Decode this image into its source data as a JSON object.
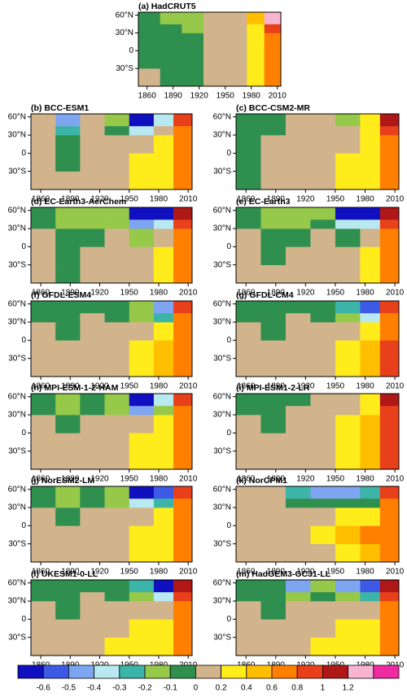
{
  "chart_data": [
    {
      "type": "heatmap",
      "title": "(a) HadCRUT5",
      "x_edges": [
        1850,
        1875,
        1900,
        1925,
        1950,
        1975,
        1995,
        2014
      ],
      "y_edges": [
        -60,
        -30,
        0,
        30,
        45,
        65
      ],
      "xlim": [
        1850,
        2014
      ],
      "ylim": [
        -60,
        65
      ],
      "xticks": [
        1860,
        1890,
        1920,
        1950,
        1980,
        2010
      ],
      "yticks": [
        {
          "value": -30,
          "label": "30°S"
        },
        0,
        {
          "value": 30,
          "label": "30°N"
        },
        {
          "value": 60,
          "label": "60°N"
        }
      ],
      "values": [
        [
          0,
          -0.05,
          -0.05,
          0.1,
          0.1,
          0.3,
          0.7
        ],
        [
          -0.05,
          -0.05,
          -0.05,
          0.1,
          0.1,
          0.3,
          0.7
        ],
        [
          -0.05,
          -0.05,
          -0.05,
          0.1,
          0.1,
          0.3,
          0.7
        ],
        [
          -0.05,
          -0.05,
          -0.15,
          0.1,
          0.1,
          0.3,
          0.9
        ],
        [
          -0.05,
          -0.15,
          -0.15,
          0.1,
          0.1,
          0.5,
          1.3
        ]
      ]
    },
    {
      "type": "heatmap",
      "title": "(b) BCC-ESM1",
      "x_edges": [
        1850,
        1875,
        1900,
        1925,
        1950,
        1975,
        1995,
        2014
      ],
      "y_edges": [
        -60,
        -30,
        0,
        30,
        45,
        65
      ],
      "xlim": [
        1850,
        2014
      ],
      "ylim": [
        -60,
        65
      ],
      "xticks": [
        1860,
        1890,
        1920,
        1950,
        1980,
        2010
      ],
      "yticks": [
        {
          "value": -30,
          "label": "30°S"
        },
        0,
        {
          "value": 30,
          "label": "30°N"
        },
        {
          "value": 60,
          "label": "60°N"
        }
      ],
      "values": [
        [
          0.1,
          0.1,
          0.1,
          0.1,
          0.3,
          0.3,
          0.6
        ],
        [
          0.1,
          -0.05,
          0.1,
          0.1,
          0.3,
          0.3,
          0.6
        ],
        [
          0.1,
          -0.05,
          0.1,
          0.1,
          0.1,
          0.3,
          0.6
        ],
        [
          0.1,
          -0.25,
          0.1,
          -0.05,
          -0.35,
          0.1,
          0.6
        ],
        [
          0.1,
          -0.45,
          0.1,
          -0.15,
          -0.7,
          -0.35,
          0.9
        ]
      ]
    },
    {
      "type": "heatmap",
      "title": "(c) BCC-CSM2-MR",
      "x_edges": [
        1850,
        1875,
        1900,
        1925,
        1950,
        1975,
        1995,
        2014
      ],
      "y_edges": [
        -60,
        -30,
        0,
        30,
        45,
        65
      ],
      "xlim": [
        1850,
        2014
      ],
      "ylim": [
        -60,
        65
      ],
      "xticks": [
        1860,
        1890,
        1920,
        1950,
        1980,
        2010
      ],
      "yticks": [
        {
          "value": -30,
          "label": "30°S"
        },
        0,
        {
          "value": 30,
          "label": "30°N"
        },
        {
          "value": 60,
          "label": "60°N"
        }
      ],
      "values": [
        [
          -0.05,
          0.1,
          0.1,
          0.1,
          0.3,
          0.3,
          0.7
        ],
        [
          -0.05,
          0.1,
          0.1,
          0.1,
          0.3,
          0.3,
          0.7
        ],
        [
          -0.05,
          0.1,
          0.1,
          0.1,
          0.1,
          0.3,
          0.7
        ],
        [
          -0.05,
          -0.05,
          0.1,
          0.1,
          0.1,
          0.3,
          0.9
        ],
        [
          -0.05,
          -0.05,
          0.1,
          0.1,
          -0.15,
          0.3,
          1.1
        ]
      ]
    },
    {
      "type": "heatmap",
      "title": "(d) EC-Earth3-AerChem",
      "x_edges": [
        1850,
        1875,
        1900,
        1925,
        1950,
        1975,
        1995,
        2014
      ],
      "y_edges": [
        -60,
        -30,
        0,
        30,
        45,
        65
      ],
      "xlim": [
        1850,
        2014
      ],
      "ylim": [
        -60,
        65
      ],
      "xticks": [
        1860,
        1890,
        1920,
        1950,
        1980,
        2010
      ],
      "yticks": [
        {
          "value": -30,
          "label": "30°S"
        },
        0,
        {
          "value": 30,
          "label": "30°N"
        },
        {
          "value": 60,
          "label": "60°N"
        }
      ],
      "values": [
        [
          0.1,
          -0.05,
          0.1,
          0.1,
          0.1,
          0.3,
          0.7
        ],
        [
          0.1,
          -0.05,
          0.1,
          0.1,
          0.1,
          0.3,
          0.7
        ],
        [
          0.1,
          -0.05,
          -0.05,
          0.1,
          -0.15,
          0.1,
          0.7
        ],
        [
          -0.05,
          -0.15,
          -0.15,
          -0.15,
          -0.45,
          -0.35,
          0.9
        ],
        [
          -0.05,
          -0.15,
          -0.15,
          -0.15,
          -0.7,
          -0.65,
          1.1
        ]
      ]
    },
    {
      "type": "heatmap",
      "title": "(e) EC-Earth3",
      "x_edges": [
        1850,
        1875,
        1900,
        1925,
        1950,
        1975,
        1995,
        2014
      ],
      "y_edges": [
        -60,
        -30,
        0,
        30,
        45,
        65
      ],
      "xlim": [
        1850,
        2014
      ],
      "ylim": [
        -60,
        65
      ],
      "xticks": [
        1860,
        1890,
        1920,
        1950,
        1980,
        2010
      ],
      "yticks": [
        {
          "value": -30,
          "label": "30°S"
        },
        0,
        {
          "value": 30,
          "label": "30°N"
        },
        {
          "value": 60,
          "label": "60°N"
        }
      ],
      "values": [
        [
          0.1,
          0.1,
          0.1,
          0.1,
          0.1,
          0.3,
          0.7
        ],
        [
          0.1,
          -0.05,
          0.1,
          0.1,
          0.1,
          0.3,
          0.7
        ],
        [
          0.1,
          -0.05,
          -0.05,
          0.1,
          -0.05,
          0.1,
          0.7
        ],
        [
          -0.05,
          -0.15,
          -0.15,
          -0.05,
          -0.35,
          -0.35,
          0.9
        ],
        [
          -0.05,
          -0.15,
          -0.15,
          -0.15,
          -0.7,
          -0.65,
          1.1
        ]
      ]
    },
    {
      "type": "heatmap",
      "title": "(f) GFDL-ESM4",
      "x_edges": [
        1850,
        1875,
        1900,
        1925,
        1950,
        1975,
        1995,
        2014
      ],
      "y_edges": [
        -60,
        -30,
        0,
        30,
        45,
        65
      ],
      "xlim": [
        1850,
        2014
      ],
      "ylim": [
        -60,
        65
      ],
      "xticks": [
        1860,
        1890,
        1920,
        1950,
        1980,
        2010
      ],
      "yticks": [
        {
          "value": -30,
          "label": "30°S"
        },
        0,
        {
          "value": 30,
          "label": "30°N"
        },
        {
          "value": 60,
          "label": "60°N"
        }
      ],
      "values": [
        [
          0.1,
          0.1,
          0.1,
          0.1,
          0.3,
          0.5,
          0.7
        ],
        [
          0.1,
          0.1,
          0.1,
          0.1,
          0.3,
          0.5,
          0.7
        ],
        [
          0.1,
          -0.05,
          0.1,
          0.1,
          0.1,
          0.3,
          0.7
        ],
        [
          -0.05,
          -0.05,
          0.1,
          -0.05,
          -0.15,
          -0.25,
          0.7
        ],
        [
          -0.05,
          -0.05,
          -0.05,
          -0.05,
          -0.15,
          -0.45,
          0.9
        ]
      ]
    },
    {
      "type": "heatmap",
      "title": "(g) GFDL-CM4",
      "x_edges": [
        1850,
        1875,
        1900,
        1925,
        1950,
        1975,
        1995,
        2014
      ],
      "y_edges": [
        -60,
        -30,
        0,
        30,
        45,
        65
      ],
      "xlim": [
        1850,
        2014
      ],
      "ylim": [
        -60,
        65
      ],
      "xticks": [
        1860,
        1890,
        1920,
        1950,
        1980,
        2010
      ],
      "yticks": [
        {
          "value": -30,
          "label": "30°S"
        },
        0,
        {
          "value": 30,
          "label": "30°N"
        },
        {
          "value": 60,
          "label": "60°N"
        }
      ],
      "values": [
        [
          0.1,
          0.1,
          0.1,
          0.1,
          0.3,
          0.5,
          0.9
        ],
        [
          0.1,
          0.1,
          0.1,
          0.1,
          0.3,
          0.5,
          0.9
        ],
        [
          0.1,
          -0.05,
          0.1,
          0.1,
          0.1,
          0.3,
          0.7
        ],
        [
          -0.05,
          -0.05,
          0.1,
          -0.05,
          -0.15,
          -0.35,
          0.7
        ],
        [
          -0.05,
          -0.05,
          -0.05,
          -0.05,
          -0.25,
          -0.55,
          0.9
        ]
      ]
    },
    {
      "type": "heatmap",
      "title": "(h) MPI-ESM-1-2-HAM",
      "x_edges": [
        1850,
        1875,
        1900,
        1925,
        1950,
        1975,
        1995,
        2014
      ],
      "y_edges": [
        -60,
        -30,
        0,
        30,
        45,
        65
      ],
      "xlim": [
        1850,
        2014
      ],
      "ylim": [
        -60,
        65
      ],
      "xticks": [
        1860,
        1890,
        1920,
        1950,
        1980,
        2010
      ],
      "yticks": [
        {
          "value": -30,
          "label": "30°S"
        },
        0,
        {
          "value": 30,
          "label": "30°N"
        },
        {
          "value": 60,
          "label": "60°N"
        }
      ],
      "values": [
        [
          0.1,
          0.1,
          0.1,
          0.1,
          0.3,
          0.3,
          0.7
        ],
        [
          0.1,
          0.1,
          0.1,
          0.1,
          0.3,
          0.3,
          0.7
        ],
        [
          0.1,
          -0.05,
          0.1,
          0.1,
          0.1,
          0.3,
          0.7
        ],
        [
          -0.05,
          -0.15,
          -0.05,
          -0.15,
          -0.45,
          -0.15,
          0.7
        ],
        [
          -0.05,
          -0.15,
          -0.05,
          -0.15,
          -0.7,
          -0.35,
          0.9
        ]
      ]
    },
    {
      "type": "heatmap",
      "title": "(i) MPI-ESM1-2-LR",
      "x_edges": [
        1850,
        1875,
        1900,
        1925,
        1950,
        1975,
        1995,
        2014
      ],
      "y_edges": [
        -60,
        -30,
        0,
        30,
        45,
        65
      ],
      "xlim": [
        1850,
        2014
      ],
      "ylim": [
        -60,
        65
      ],
      "xticks": [
        1860,
        1890,
        1920,
        1950,
        1980,
        2010
      ],
      "yticks": [
        {
          "value": -30,
          "label": "30°S"
        },
        0,
        {
          "value": 30,
          "label": "30°N"
        },
        {
          "value": 60,
          "label": "60°N"
        }
      ],
      "values": [
        [
          0.1,
          0.1,
          0.1,
          0.1,
          0.3,
          0.5,
          0.9
        ],
        [
          0.1,
          0.1,
          0.1,
          0.1,
          0.3,
          0.5,
          0.9
        ],
        [
          0.1,
          -0.05,
          0.1,
          0.1,
          0.3,
          0.5,
          0.9
        ],
        [
          -0.05,
          -0.05,
          0.1,
          0.1,
          0.1,
          0.3,
          0.9
        ],
        [
          -0.05,
          -0.05,
          -0.05,
          0.1,
          0.1,
          0.3,
          1.1
        ]
      ]
    },
    {
      "type": "heatmap",
      "title": "(j) NorESM2-LM",
      "x_edges": [
        1850,
        1875,
        1900,
        1925,
        1950,
        1975,
        1995,
        2014
      ],
      "y_edges": [
        -60,
        -30,
        0,
        30,
        45,
        65
      ],
      "xlim": [
        1850,
        2014
      ],
      "ylim": [
        -60,
        65
      ],
      "xticks": [
        1860,
        1890,
        1920,
        1950,
        1980,
        2010
      ],
      "yticks": [
        {
          "value": -30,
          "label": "30°S"
        },
        0,
        {
          "value": 30,
          "label": "30°N"
        },
        {
          "value": 60,
          "label": "60°N"
        }
      ],
      "values": [
        [
          0.1,
          0.1,
          0.1,
          0.1,
          0.3,
          0.3,
          0.7
        ],
        [
          0.1,
          0.1,
          0.1,
          0.1,
          0.3,
          0.3,
          0.7
        ],
        [
          0.1,
          -0.05,
          0.1,
          0.1,
          0.1,
          0.3,
          0.7
        ],
        [
          -0.05,
          -0.15,
          -0.05,
          -0.15,
          -0.35,
          -0.25,
          0.7
        ],
        [
          -0.05,
          -0.15,
          -0.05,
          -0.15,
          -0.7,
          -0.55,
          0.9
        ]
      ]
    },
    {
      "type": "heatmap",
      "title": "(k) NorCPM1",
      "x_edges": [
        1850,
        1875,
        1900,
        1925,
        1950,
        1975,
        1995,
        2014
      ],
      "y_edges": [
        -60,
        -30,
        0,
        30,
        45,
        65
      ],
      "xlim": [
        1850,
        2014
      ],
      "ylim": [
        -60,
        65
      ],
      "xticks": [
        1860,
        1890,
        1920,
        1950,
        1980,
        2010
      ],
      "yticks": [
        {
          "value": -30,
          "label": "30°S"
        },
        0,
        {
          "value": 30,
          "label": "30°N"
        },
        {
          "value": 60,
          "label": "60°N"
        }
      ],
      "values": [
        [
          0.1,
          0.1,
          0.1,
          0.1,
          0.3,
          0.5,
          0.7
        ],
        [
          0.1,
          0.1,
          0.1,
          0.3,
          0.5,
          0.7,
          0.7
        ],
        [
          0.1,
          0.1,
          0.1,
          0.1,
          0.3,
          0.3,
          0.7
        ],
        [
          0.1,
          0.1,
          -0.05,
          -0.05,
          -0.05,
          -0.05,
          0.7
        ],
        [
          0.1,
          0.1,
          -0.25,
          -0.45,
          -0.45,
          -0.25,
          0.9
        ]
      ]
    },
    {
      "type": "heatmap",
      "title": "(l) UKESM1-0-LL",
      "x_edges": [
        1850,
        1875,
        1900,
        1925,
        1950,
        1975,
        1995,
        2014
      ],
      "y_edges": [
        -60,
        -30,
        0,
        30,
        45,
        65
      ],
      "xlim": [
        1850,
        2014
      ],
      "ylim": [
        -60,
        65
      ],
      "xticks": [
        1860,
        1890,
        1920,
        1950,
        1980,
        2010
      ],
      "yticks": [
        {
          "value": -30,
          "label": "30°S"
        },
        0,
        {
          "value": 30,
          "label": "30°N"
        },
        {
          "value": 60,
          "label": "60°N"
        }
      ],
      "values": [
        [
          0.1,
          0.1,
          0.1,
          0.3,
          0.3,
          0.3,
          0.7
        ],
        [
          0.1,
          0.1,
          0.1,
          0.1,
          0.3,
          0.3,
          0.7
        ],
        [
          0.1,
          -0.05,
          0.1,
          0.1,
          0.1,
          0.1,
          0.7
        ],
        [
          -0.05,
          -0.05,
          0.1,
          -0.05,
          -0.15,
          -0.35,
          0.9
        ],
        [
          -0.05,
          -0.05,
          -0.05,
          -0.05,
          -0.25,
          -0.7,
          1.1
        ]
      ]
    },
    {
      "type": "heatmap",
      "title": "(m) HadGEM3-GC31-LL",
      "x_edges": [
        1850,
        1875,
        1900,
        1925,
        1950,
        1975,
        1995,
        2014
      ],
      "y_edges": [
        -60,
        -30,
        0,
        30,
        45,
        65
      ],
      "xlim": [
        1850,
        2014
      ],
      "ylim": [
        -60,
        65
      ],
      "xticks": [
        1860,
        1890,
        1920,
        1950,
        1980,
        2010
      ],
      "yticks": [
        {
          "value": -30,
          "label": "30°S"
        },
        0,
        {
          "value": 30,
          "label": "30°N"
        },
        {
          "value": 60,
          "label": "60°N"
        }
      ],
      "values": [
        [
          0.1,
          0.1,
          0.1,
          0.3,
          0.3,
          0.3,
          0.7
        ],
        [
          0.1,
          0.1,
          0.1,
          0.1,
          0.3,
          0.3,
          0.7
        ],
        [
          0.1,
          -0.05,
          0.1,
          0.1,
          0.1,
          0.1,
          0.7
        ],
        [
          -0.05,
          -0.05,
          -0.15,
          -0.05,
          -0.15,
          -0.25,
          0.9
        ],
        [
          -0.05,
          -0.05,
          -0.45,
          -0.15,
          -0.45,
          -0.55,
          1.1
        ]
      ]
    }
  ],
  "colorbar": {
    "levels": [
      -0.6,
      -0.5,
      -0.4,
      -0.3,
      -0.2,
      -0.1,
      0,
      0.2,
      0.4,
      0.6,
      0.8,
      1,
      1.2
    ],
    "colors": [
      "#1010c0",
      "#3c5ae6",
      "#7ea6f0",
      "#b8e8f0",
      "#3cb4a8",
      "#96c84a",
      "#2f8f4f",
      "#d2b48c",
      "#ffec1a",
      "#ffbf00",
      "#ff8000",
      "#e8401a",
      "#b01818",
      "#f8b4d0",
      "#f02aa0"
    ]
  }
}
